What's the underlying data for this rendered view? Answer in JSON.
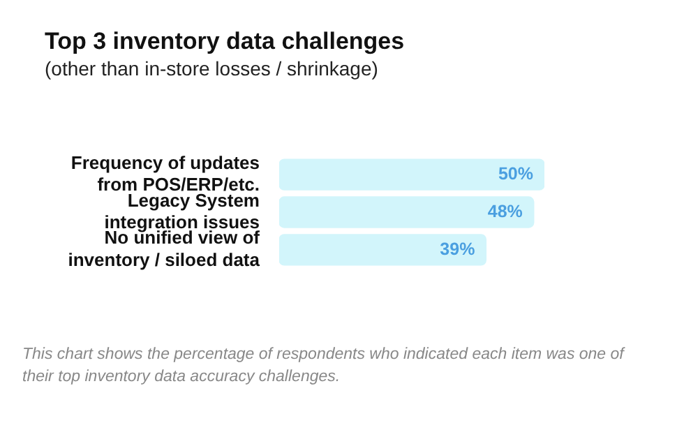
{
  "chart_data": {
    "type": "bar",
    "orientation": "horizontal",
    "title": "Top 3 inventory data challenges",
    "subtitle": "(other than in-store losses / shrinkage)",
    "categories": [
      "Frequency of updates from POS/ERP/etc.",
      "Legacy System integration issues",
      "No unified view of inventory / siloed data"
    ],
    "values": [
      50,
      48,
      39
    ],
    "value_labels": [
      "50%",
      "48%",
      "39%"
    ],
    "color": "#d2f5fb",
    "legend": false,
    "annotations": [
      "This chart shows the percentage of respondents who indicated each item was one of their top inventory data accuracy challenges."
    ]
  }
}
